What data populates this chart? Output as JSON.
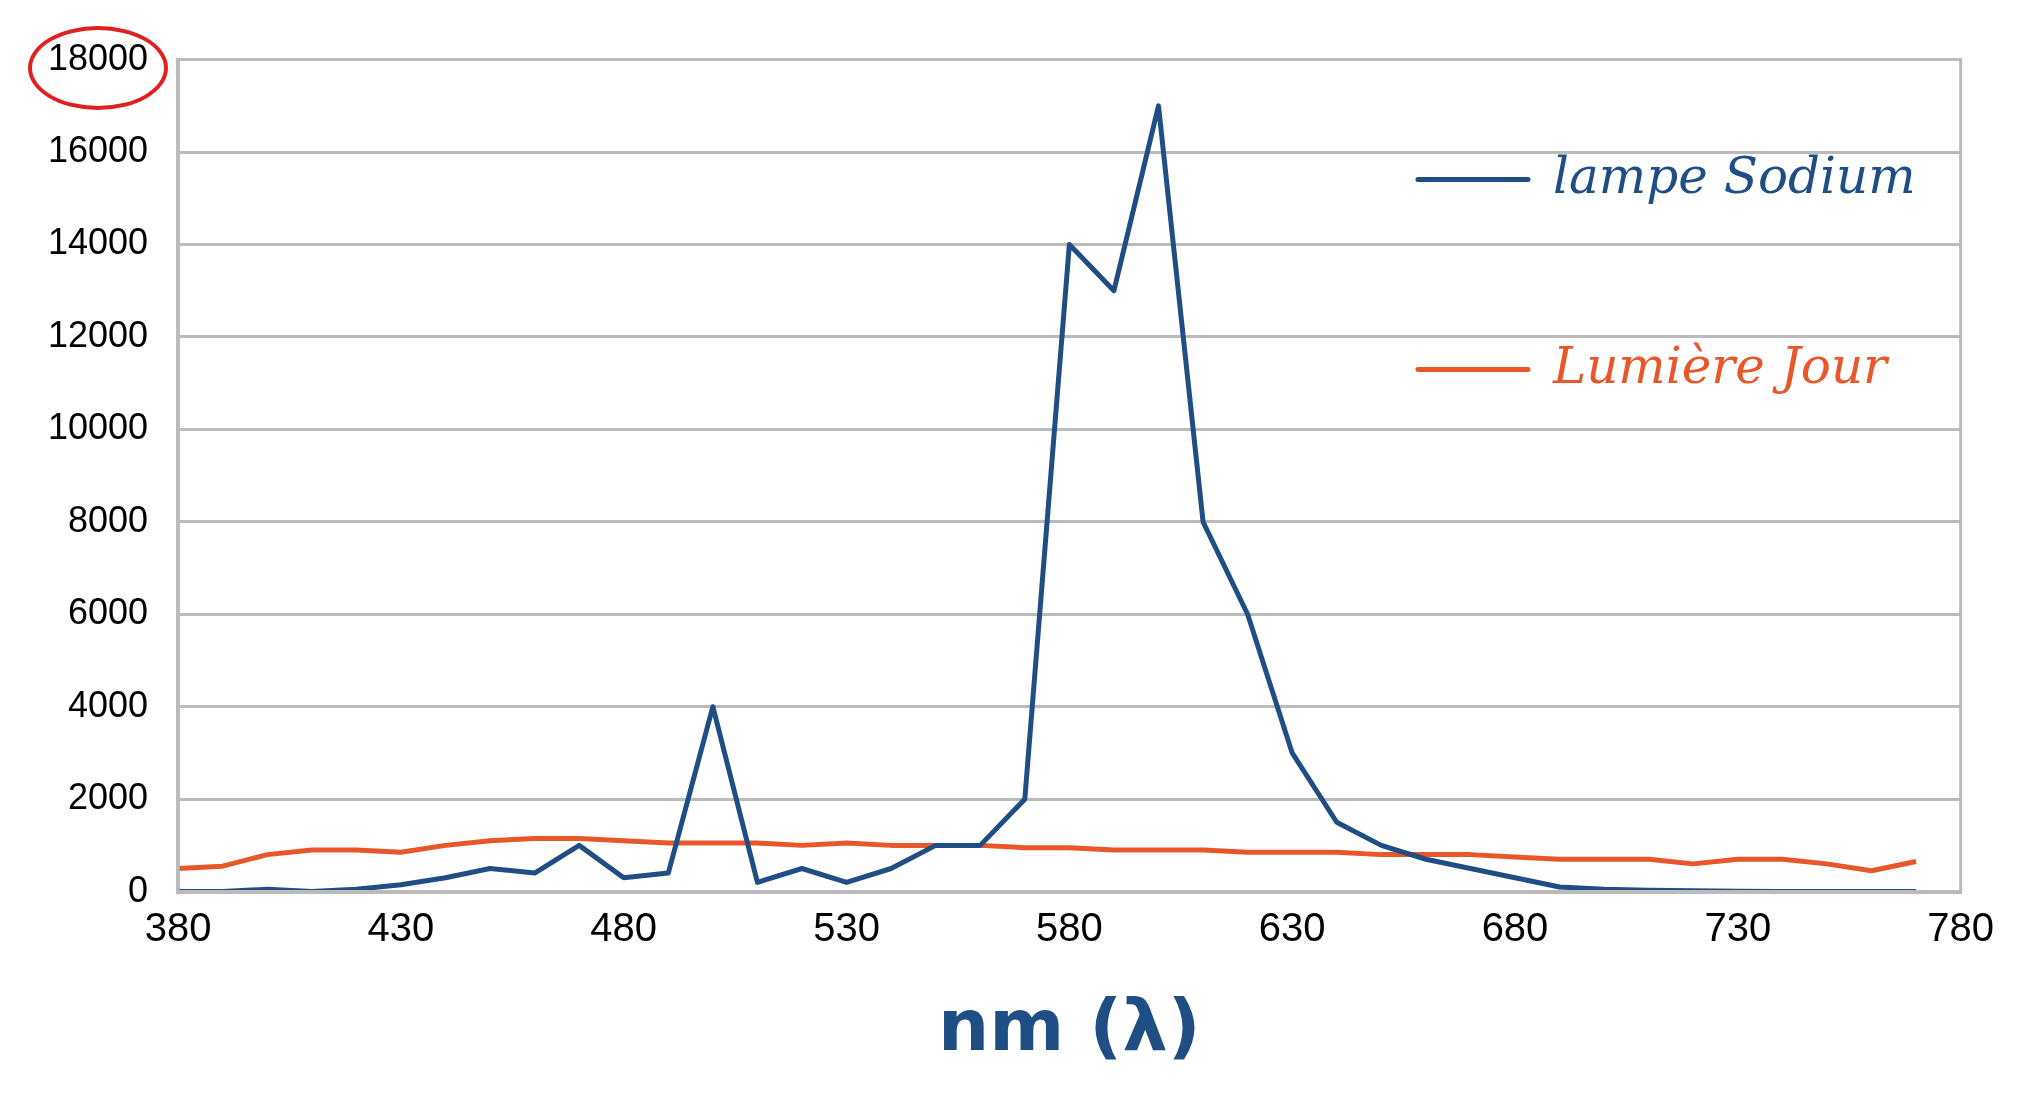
{
  "chart_data": {
    "type": "line",
    "xlabel": "nm (λ)",
    "x": [
      380,
      390,
      400,
      410,
      420,
      430,
      440,
      450,
      460,
      470,
      480,
      490,
      500,
      510,
      520,
      530,
      540,
      550,
      560,
      570,
      580,
      590,
      600,
      610,
      620,
      630,
      640,
      650,
      660,
      670,
      680,
      690,
      700,
      710,
      720,
      730,
      740,
      750,
      760,
      770
    ],
    "series": [
      {
        "name": "lampe Sodium",
        "color": "#1f4e85",
        "values": [
          0,
          0,
          50,
          0,
          50,
          150,
          300,
          500,
          400,
          1000,
          300,
          400,
          4000,
          200,
          500,
          200,
          500,
          1000,
          1000,
          2000,
          14000,
          13000,
          17000,
          8000,
          6000,
          3000,
          1500,
          1000,
          700,
          500,
          300,
          100,
          50,
          30,
          20,
          10,
          0,
          0,
          0,
          0
        ]
      },
      {
        "name": "Lumière Jour",
        "color": "#e8562a",
        "values": [
          500,
          550,
          800,
          900,
          900,
          850,
          1000,
          1100,
          1150,
          1150,
          1100,
          1050,
          1050,
          1050,
          1000,
          1050,
          1000,
          1000,
          1000,
          950,
          950,
          900,
          900,
          900,
          850,
          850,
          850,
          800,
          800,
          800,
          750,
          700,
          700,
          700,
          600,
          700,
          700,
          600,
          450,
          650
        ]
      }
    ],
    "xlim": [
      380,
      780
    ],
    "xticks": [
      380,
      430,
      480,
      530,
      580,
      630,
      680,
      730,
      780
    ],
    "ylim": [
      0,
      18000
    ],
    "yticks": [
      0,
      2000,
      4000,
      6000,
      8000,
      10000,
      12000,
      14000,
      16000,
      18000
    ],
    "grid": "y",
    "legend": "top right",
    "marker": "none",
    "line_style": "solid"
  }
}
